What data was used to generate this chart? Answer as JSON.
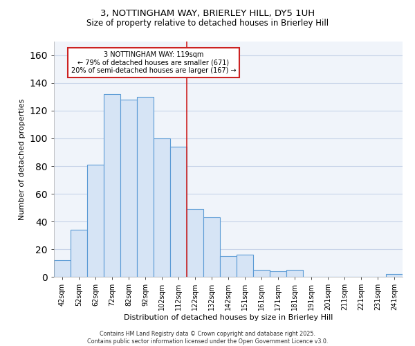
{
  "title_line1": "3, NOTTINGHAM WAY, BRIERLEY HILL, DY5 1UH",
  "title_line2": "Size of property relative to detached houses in Brierley Hill",
  "xlabel": "Distribution of detached houses by size in Brierley Hill",
  "ylabel": "Number of detached properties",
  "footnote": "Contains HM Land Registry data © Crown copyright and database right 2025.\nContains public sector information licensed under the Open Government Licence v3.0.",
  "bar_labels": [
    "42sqm",
    "52sqm",
    "62sqm",
    "72sqm",
    "82sqm",
    "92sqm",
    "102sqm",
    "112sqm",
    "122sqm",
    "132sqm",
    "142sqm",
    "151sqm",
    "161sqm",
    "171sqm",
    "181sqm",
    "191sqm",
    "201sqm",
    "211sqm",
    "221sqm",
    "231sqm",
    "241sqm"
  ],
  "bar_values": [
    12,
    34,
    81,
    132,
    128,
    130,
    100,
    94,
    49,
    43,
    15,
    16,
    5,
    4,
    5,
    0,
    0,
    0,
    0,
    0,
    2
  ],
  "bar_fill_color": "#d6e4f5",
  "bar_edge_color": "#5b9bd5",
  "vline_x_index": 8,
  "annotation_title": "3 NOTTINGHAM WAY: 119sqm",
  "annotation_line2": "← 79% of detached houses are smaller (671)",
  "annotation_line3": "20% of semi-detached houses are larger (167) →",
  "vline_color": "#cc2222",
  "annotation_box_edgecolor": "#cc2222",
  "ylim": [
    0,
    170
  ],
  "yticks": [
    0,
    20,
    40,
    60,
    80,
    100,
    120,
    140,
    160
  ],
  "background_color": "#f0f4fa",
  "grid_color": "#c8d4e8",
  "fig_background": "#ffffff"
}
